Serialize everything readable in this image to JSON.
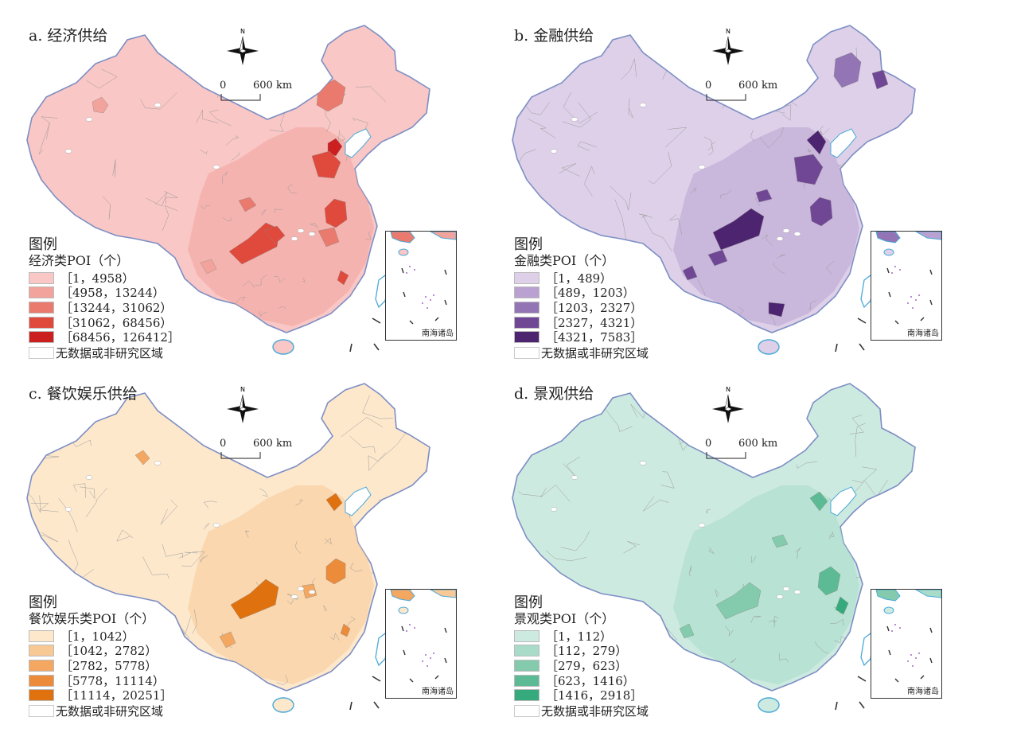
{
  "scale": {
    "zero": "0",
    "distance": "600 km"
  },
  "compass": {
    "north": "N"
  },
  "inset_label": "南海诸岛",
  "legend_heading": "图例",
  "nodata_label": "无数据或非研究区域",
  "colors": {
    "coast": "#4aa9d9",
    "border": "#9a9a9a"
  },
  "panels": [
    {
      "title": "a. 经济供给",
      "legend_title": "经济类POI（个）",
      "classes": [
        {
          "label": "［1，4958）",
          "color": "#f9c7c5"
        },
        {
          "label": "［4958，13244）",
          "color": "#f2a39c"
        },
        {
          "label": "［13244，31062）",
          "color": "#ea7a6d"
        },
        {
          "label": "［31062，68456）",
          "color": "#df4a3c"
        },
        {
          "label": "［68456，126412］",
          "color": "#cc1f1f"
        }
      ]
    },
    {
      "title": "b. 金融供给",
      "legend_title": "金融类POI（个）",
      "classes": [
        {
          "label": "［1，489）",
          "color": "#ddd0e8"
        },
        {
          "label": "［489，1203）",
          "color": "#b9a2d1"
        },
        {
          "label": "［1203，2327）",
          "color": "#9374b4"
        },
        {
          "label": "［2327，4321）",
          "color": "#6f4795"
        },
        {
          "label": "［4321，7583］",
          "color": "#4d2470"
        }
      ]
    },
    {
      "title": "c. 餐饮娱乐供给",
      "legend_title": "餐饮娱乐类POI（个）",
      "classes": [
        {
          "label": "［1，1042）",
          "color": "#fde8cc"
        },
        {
          "label": "［1042，2782）",
          "color": "#f8c995"
        },
        {
          "label": "［2782，5778）",
          "color": "#f3a760"
        },
        {
          "label": "［5778，11114）",
          "color": "#ec8b39"
        },
        {
          "label": "［11114，20251］",
          "color": "#e0710f"
        }
      ]
    },
    {
      "title": "d. 景观供给",
      "legend_title": "景观类POI（个）",
      "classes": [
        {
          "label": "［1，112）",
          "color": "#cdeae0"
        },
        {
          "label": "［112，279）",
          "color": "#a8dbc8"
        },
        {
          "label": "［279，623）",
          "color": "#84cbae"
        },
        {
          "label": "［623，1416）",
          "color": "#5cbb95"
        },
        {
          "label": "［1416，2918］",
          "color": "#36aa7c"
        }
      ]
    }
  ]
}
